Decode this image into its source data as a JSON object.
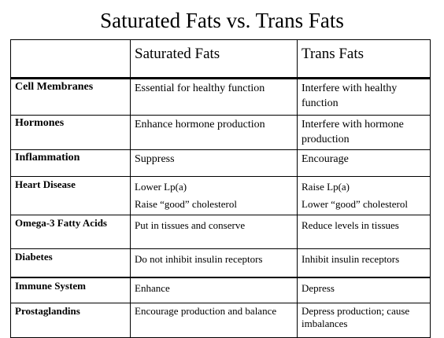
{
  "title": "Saturated Fats vs. Trans Fats",
  "table": {
    "headers": [
      "",
      "Saturated Fats",
      "Trans Fats"
    ],
    "rows": [
      {
        "label": "Cell Membranes",
        "saturated": [
          "Essential for healthy function"
        ],
        "trans": [
          "Interfere with healthy function"
        ]
      },
      {
        "label": "Hormones",
        "saturated": [
          "Enhance hormone production"
        ],
        "trans": [
          "Interfere with hormone production"
        ]
      },
      {
        "label": "Inflammation",
        "saturated": [
          "Suppress"
        ],
        "trans": [
          "Encourage"
        ]
      },
      {
        "label": "Heart Disease",
        "saturated": [
          "Lower Lp(a)",
          "Raise “good” cholesterol"
        ],
        "trans": [
          "Raise Lp(a)",
          "Lower “good” cholesterol"
        ]
      },
      {
        "label": "Omega-3 Fatty Acids",
        "saturated": [
          "Put in tissues and conserve"
        ],
        "trans": [
          "Reduce levels in tissues"
        ]
      },
      {
        "label": "Diabetes",
        "saturated": [
          "Do not inhibit insulin receptors"
        ],
        "trans": [
          "Inhibit insulin receptors"
        ]
      },
      {
        "label": "Immune System",
        "saturated": [
          "Enhance"
        ],
        "trans": [
          "Depress"
        ]
      },
      {
        "label": "Prostaglandins",
        "saturated": [
          "Encourage production and balance"
        ],
        "trans": [
          "Depress production; cause imbalances"
        ]
      }
    ]
  }
}
